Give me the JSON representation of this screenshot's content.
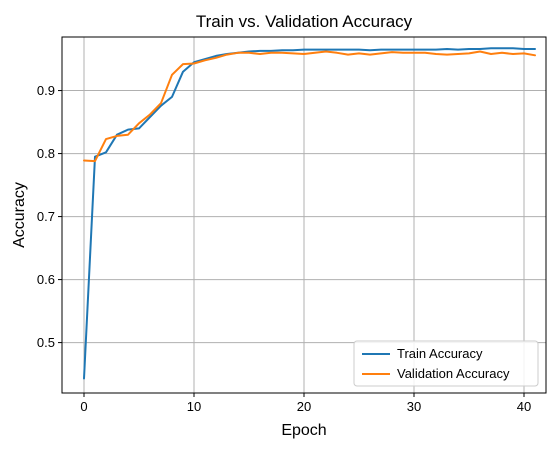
{
  "chart_data": {
    "type": "line",
    "title": "Train vs. Validation Accuracy",
    "xlabel": "Epoch",
    "ylabel": "Accuracy",
    "xlim": [
      -2,
      42
    ],
    "ylim": [
      0.42,
      0.985
    ],
    "xticks": [
      0,
      10,
      20,
      30,
      40
    ],
    "yticks": [
      0.5,
      0.6,
      0.7,
      0.8,
      0.9
    ],
    "grid": true,
    "legend_position": "bottom-right",
    "x": [
      0,
      1,
      2,
      3,
      4,
      5,
      6,
      7,
      8,
      9,
      10,
      11,
      12,
      13,
      14,
      15,
      16,
      17,
      18,
      19,
      20,
      21,
      22,
      23,
      24,
      25,
      26,
      27,
      28,
      29,
      30,
      31,
      32,
      33,
      34,
      35,
      36,
      37,
      38,
      39,
      40,
      41
    ],
    "series": [
      {
        "name": "Train Accuracy",
        "color": "#1f77b4",
        "values": [
          0.443,
          0.795,
          0.802,
          0.83,
          0.838,
          0.84,
          0.858,
          0.876,
          0.89,
          0.93,
          0.945,
          0.95,
          0.955,
          0.958,
          0.96,
          0.962,
          0.963,
          0.963,
          0.964,
          0.964,
          0.965,
          0.965,
          0.965,
          0.965,
          0.965,
          0.965,
          0.964,
          0.965,
          0.965,
          0.965,
          0.965,
          0.965,
          0.965,
          0.966,
          0.965,
          0.966,
          0.966,
          0.967,
          0.967,
          0.967,
          0.966,
          0.966
        ]
      },
      {
        "name": "Validation Accuracy",
        "color": "#ff7f0e",
        "values": [
          0.789,
          0.788,
          0.823,
          0.828,
          0.83,
          0.848,
          0.862,
          0.88,
          0.925,
          0.942,
          0.943,
          0.948,
          0.952,
          0.957,
          0.96,
          0.96,
          0.958,
          0.96,
          0.96,
          0.959,
          0.958,
          0.96,
          0.962,
          0.96,
          0.957,
          0.959,
          0.957,
          0.959,
          0.961,
          0.96,
          0.96,
          0.96,
          0.958,
          0.957,
          0.958,
          0.959,
          0.962,
          0.958,
          0.96,
          0.958,
          0.959,
          0.956
        ]
      }
    ]
  }
}
